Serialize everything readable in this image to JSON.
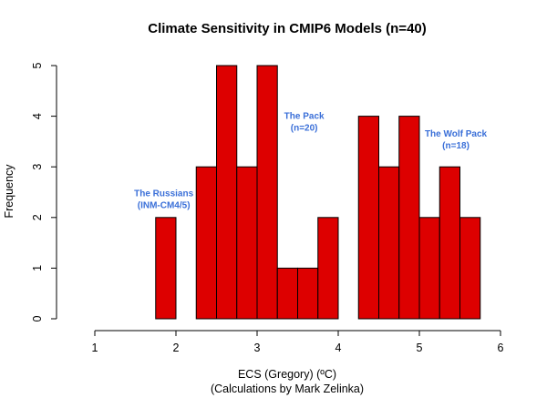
{
  "chart_data": {
    "type": "bar",
    "title": "Climate Sensitivity in CMIP6 Models (n=40)",
    "xlabel": "ECS (Gregory) (ºC)",
    "xlabel_note": "(Calculations by Mark Zelinka)",
    "ylabel": "Frequency",
    "xlim": [
      0.75,
      6
    ],
    "ylim": [
      0,
      5
    ],
    "x_ticks": [
      1,
      2,
      3,
      4,
      5,
      6
    ],
    "y_ticks": [
      0,
      1,
      2,
      3,
      4,
      5
    ],
    "bin_width": 0.25,
    "bins": [
      {
        "start": 1.75,
        "end": 2.0,
        "count": 2
      },
      {
        "start": 2.25,
        "end": 2.5,
        "count": 3
      },
      {
        "start": 2.5,
        "end": 2.75,
        "count": 5
      },
      {
        "start": 2.75,
        "end": 3.0,
        "count": 3
      },
      {
        "start": 3.0,
        "end": 3.25,
        "count": 5
      },
      {
        "start": 3.25,
        "end": 3.5,
        "count": 1
      },
      {
        "start": 3.5,
        "end": 3.75,
        "count": 1
      },
      {
        "start": 3.75,
        "end": 4.0,
        "count": 2
      },
      {
        "start": 4.25,
        "end": 4.5,
        "count": 4
      },
      {
        "start": 4.5,
        "end": 4.75,
        "count": 3
      },
      {
        "start": 4.75,
        "end": 5.0,
        "count": 4
      },
      {
        "start": 5.0,
        "end": 5.25,
        "count": 2
      },
      {
        "start": 5.25,
        "end": 5.5,
        "count": 3
      },
      {
        "start": 5.5,
        "end": 5.75,
        "count": 2
      }
    ],
    "bar_color": "#dd0000",
    "annotations": [
      {
        "line1": "The Russians",
        "line2": "(INM-CM4/5)",
        "x": 1.85,
        "y": 2.42,
        "color": "#3a6fd8"
      },
      {
        "line1": "The Pack",
        "line2": "(n=20)",
        "x": 3.58,
        "y": 3.95,
        "color": "#3a6fd8"
      },
      {
        "line1": "The Wolf Pack",
        "line2": "(n=18)",
        "x": 5.45,
        "y": 3.6,
        "color": "#3a6fd8"
      }
    ],
    "grid": false,
    "legend": "none"
  }
}
